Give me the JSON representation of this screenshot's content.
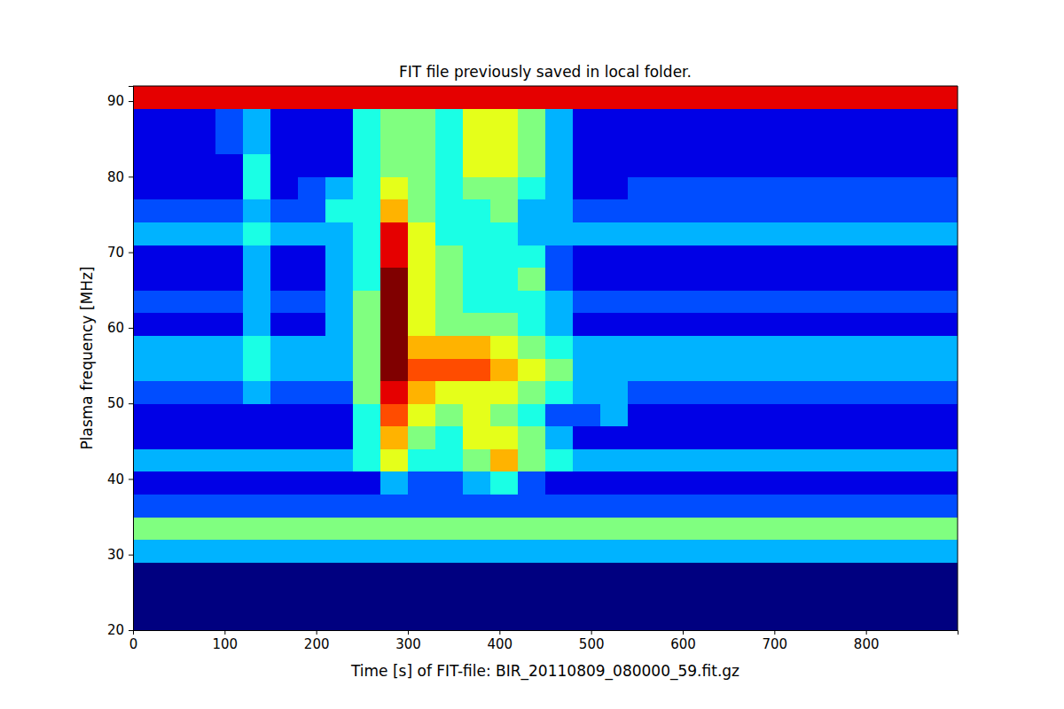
{
  "chart_data": {
    "type": "heatmap",
    "title": "FIT file previously saved in local folder.",
    "x_label": "Time [s] of FIT-file: BIR_20110809_080000_59.fit.gz",
    "y_label": "Plasma frequency [MHz]",
    "xlim": [
      0,
      900
    ],
    "ylim": [
      20,
      92
    ],
    "xticks": [
      0,
      100,
      200,
      300,
      400,
      500,
      600,
      700,
      800
    ],
    "yticks": [
      20,
      30,
      40,
      50,
      60,
      70,
      80,
      90
    ],
    "zlim": [
      0,
      10
    ],
    "x_edges": [
      0,
      30,
      60,
      90,
      120,
      150,
      180,
      210,
      240,
      270,
      300,
      330,
      360,
      390,
      420,
      450,
      480,
      510,
      540,
      570,
      600,
      630,
      660,
      690,
      720,
      750,
      780,
      810,
      840,
      870,
      900
    ],
    "y_edges": [
      20,
      23,
      26,
      29,
      32,
      35,
      38,
      41,
      44,
      47,
      50,
      53,
      56,
      59,
      62,
      65,
      68,
      71,
      74,
      77,
      80,
      83,
      86,
      89,
      92
    ],
    "values": [
      [
        0,
        0,
        0,
        0,
        0,
        0,
        0,
        0,
        0,
        0,
        0,
        0,
        0,
        0,
        0,
        0,
        0,
        0,
        0,
        0,
        0,
        0,
        0,
        0,
        0,
        0,
        0,
        0,
        0,
        0
      ],
      [
        0,
        0,
        0,
        0,
        0,
        0,
        0,
        0,
        0,
        0,
        0,
        0,
        0,
        0,
        0,
        0,
        0,
        0,
        0,
        0,
        0,
        0,
        0,
        0,
        0,
        0,
        0,
        0,
        0,
        0
      ],
      [
        0,
        0,
        0,
        0,
        0,
        0,
        0,
        0,
        0,
        0,
        0,
        0,
        0,
        0,
        0,
        0,
        0,
        0,
        0,
        0,
        0,
        0,
        0,
        0,
        0,
        0,
        0,
        0,
        0,
        0
      ],
      [
        3,
        3,
        3,
        3,
        3,
        3,
        3,
        3,
        3,
        3,
        3,
        3,
        3,
        3,
        3,
        3,
        3,
        3,
        3,
        3,
        3,
        3,
        3,
        3,
        3,
        3,
        3,
        3,
        3,
        3
      ],
      [
        5,
        5,
        5,
        5,
        5,
        5,
        5,
        5,
        5,
        5,
        5,
        5,
        5,
        5,
        5,
        5,
        5,
        5,
        5,
        5,
        5,
        5,
        5,
        5,
        5,
        5,
        5,
        5,
        5,
        5
      ],
      [
        2,
        2,
        2,
        2,
        2,
        2,
        2,
        2,
        2,
        2,
        2,
        2,
        2,
        2,
        2,
        2,
        2,
        2,
        2,
        2,
        2,
        2,
        2,
        2,
        2,
        2,
        2,
        2,
        2,
        2
      ],
      [
        1,
        1,
        1,
        1,
        1,
        1,
        1,
        1,
        1,
        3,
        2,
        2,
        3,
        4,
        2,
        1,
        1,
        1,
        1,
        1,
        1,
        1,
        1,
        1,
        1,
        1,
        1,
        1,
        1,
        1
      ],
      [
        3,
        3,
        3,
        3,
        3,
        3,
        3,
        3,
        4,
        6,
        4,
        4,
        5,
        7,
        5,
        4,
        3,
        3,
        3,
        3,
        3,
        3,
        3,
        3,
        3,
        3,
        3,
        3,
        3,
        3
      ],
      [
        1,
        1,
        1,
        1,
        1,
        1,
        1,
        1,
        4,
        7,
        5,
        4,
        6,
        6,
        5,
        3,
        1,
        1,
        1,
        1,
        1,
        1,
        1,
        1,
        1,
        1,
        1,
        1,
        1,
        1
      ],
      [
        1,
        1,
        1,
        1,
        1,
        1,
        1,
        1,
        4,
        8,
        6,
        5,
        6,
        5,
        4,
        2,
        2,
        3,
        1,
        1,
        1,
        1,
        1,
        1,
        1,
        1,
        1,
        1,
        1,
        1
      ],
      [
        2,
        2,
        2,
        2,
        3,
        2,
        2,
        2,
        5,
        9,
        7,
        6,
        6,
        6,
        5,
        4,
        3,
        3,
        2,
        2,
        2,
        2,
        2,
        2,
        2,
        2,
        2,
        2,
        2,
        2
      ],
      [
        3,
        3,
        3,
        3,
        4,
        3,
        3,
        3,
        5,
        10,
        8,
        8,
        8,
        7,
        6,
        5,
        3,
        3,
        3,
        3,
        3,
        3,
        3,
        3,
        3,
        3,
        3,
        3,
        3,
        3
      ],
      [
        3,
        3,
        3,
        3,
        4,
        3,
        3,
        3,
        5,
        10,
        7,
        7,
        7,
        6,
        5,
        4,
        3,
        3,
        3,
        3,
        3,
        3,
        3,
        3,
        3,
        3,
        3,
        3,
        3,
        3
      ],
      [
        1,
        1,
        1,
        1,
        3,
        1,
        1,
        3,
        5,
        10,
        6,
        5,
        5,
        5,
        4,
        3,
        1,
        1,
        1,
        1,
        1,
        1,
        1,
        1,
        1,
        1,
        1,
        1,
        1,
        1
      ],
      [
        2,
        2,
        2,
        2,
        3,
        2,
        2,
        3,
        5,
        10,
        6,
        5,
        4,
        4,
        4,
        3,
        2,
        2,
        2,
        2,
        2,
        2,
        2,
        2,
        2,
        2,
        2,
        2,
        2,
        2
      ],
      [
        1,
        1,
        1,
        1,
        3,
        1,
        1,
        3,
        4,
        10,
        6,
        5,
        4,
        4,
        5,
        2,
        1,
        1,
        1,
        1,
        1,
        1,
        1,
        1,
        1,
        1,
        1,
        1,
        1,
        1
      ],
      [
        1,
        1,
        1,
        1,
        3,
        1,
        1,
        3,
        4,
        9,
        6,
        5,
        4,
        4,
        4,
        2,
        1,
        1,
        1,
        1,
        1,
        1,
        1,
        1,
        1,
        1,
        1,
        1,
        1,
        1
      ],
      [
        3,
        3,
        3,
        3,
        4,
        3,
        3,
        3,
        4,
        9,
        6,
        4,
        4,
        4,
        3,
        3,
        3,
        3,
        3,
        3,
        3,
        3,
        3,
        3,
        3,
        3,
        3,
        3,
        3,
        3
      ],
      [
        2,
        2,
        2,
        2,
        3,
        2,
        2,
        4,
        4,
        7,
        5,
        4,
        4,
        5,
        3,
        3,
        2,
        2,
        2,
        2,
        2,
        2,
        2,
        2,
        2,
        2,
        2,
        2,
        2,
        2
      ],
      [
        1,
        1,
        1,
        1,
        4,
        1,
        2,
        3,
        4,
        6,
        5,
        4,
        5,
        5,
        4,
        3,
        1,
        1,
        2,
        2,
        2,
        2,
        2,
        2,
        2,
        2,
        2,
        2,
        2,
        2
      ],
      [
        1,
        1,
        1,
        1,
        4,
        1,
        1,
        1,
        4,
        5,
        5,
        4,
        6,
        6,
        5,
        3,
        1,
        1,
        1,
        1,
        1,
        1,
        1,
        1,
        1,
        1,
        1,
        1,
        1,
        1
      ],
      [
        1,
        1,
        1,
        2,
        3,
        1,
        1,
        1,
        4,
        5,
        5,
        4,
        6,
        6,
        5,
        3,
        1,
        1,
        1,
        1,
        1,
        1,
        1,
        1,
        1,
        1,
        1,
        1,
        1,
        1
      ],
      [
        1,
        1,
        1,
        2,
        3,
        1,
        1,
        1,
        4,
        5,
        5,
        4,
        6,
        6,
        5,
        3,
        1,
        1,
        1,
        1,
        1,
        1,
        1,
        1,
        1,
        1,
        1,
        1,
        1,
        1
      ],
      [
        9,
        9,
        9,
        9,
        9,
        9,
        9,
        9,
        9,
        9,
        9,
        9,
        9,
        9,
        9,
        9,
        9,
        9,
        9,
        9,
        9,
        9,
        9,
        9,
        9,
        9,
        9,
        9,
        9,
        9
      ]
    ]
  }
}
